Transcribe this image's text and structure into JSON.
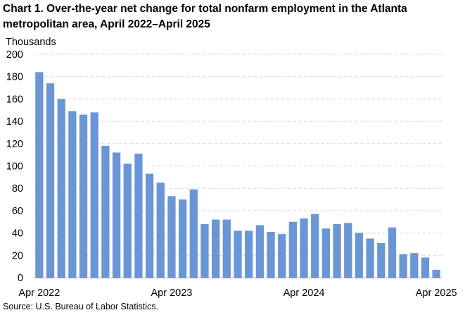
{
  "title": "Chart 1. Over-the-year net change for total nonfarm employment in the Atlanta metropolitan area, April 2022–April 2025",
  "source": "Source: U.S. Bureau of Labor Statistics.",
  "colors": {
    "bar": "#6a96d6",
    "grid": "#d9d9d9",
    "axis": "#a6a6a6"
  },
  "chart_data": {
    "type": "bar",
    "ylabel": "Thousands",
    "xlabel": "",
    "ylim": [
      0,
      200
    ],
    "yticks": [
      0,
      20,
      40,
      60,
      80,
      100,
      120,
      140,
      160,
      180,
      200
    ],
    "grid": true,
    "legend": "none",
    "xtick_labels": [
      {
        "index": 0,
        "label": "Apr 2022"
      },
      {
        "index": 12,
        "label": "Apr 2023"
      },
      {
        "index": 24,
        "label": "Apr 2024"
      },
      {
        "index": 36,
        "label": "Apr 2025"
      }
    ],
    "categories": [
      "Apr 2022",
      "May 2022",
      "Jun 2022",
      "Jul 2022",
      "Aug 2022",
      "Sep 2022",
      "Oct 2022",
      "Nov 2022",
      "Dec 2022",
      "Jan 2023",
      "Feb 2023",
      "Mar 2023",
      "Apr 2023",
      "May 2023",
      "Jun 2023",
      "Jul 2023",
      "Aug 2023",
      "Sep 2023",
      "Oct 2023",
      "Nov 2023",
      "Dec 2023",
      "Jan 2024",
      "Feb 2024",
      "Mar 2024",
      "Apr 2024",
      "May 2024",
      "Jun 2024",
      "Jul 2024",
      "Aug 2024",
      "Sep 2024",
      "Oct 2024",
      "Nov 2024",
      "Dec 2024",
      "Jan 2025",
      "Feb 2025",
      "Mar 2025",
      "Apr 2025"
    ],
    "values": [
      184,
      174,
      160,
      149,
      146,
      148,
      118,
      112,
      102,
      111,
      93,
      85,
      73,
      70,
      79,
      48,
      52,
      52,
      42,
      42,
      47,
      41,
      39,
      50,
      53,
      57,
      44,
      48,
      49,
      40,
      35,
      31,
      45,
      21,
      22,
      18,
      7
    ]
  }
}
